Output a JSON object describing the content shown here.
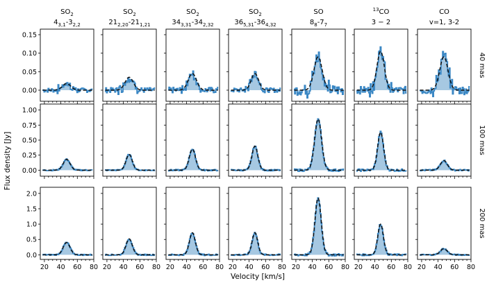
{
  "chart_data": {
    "type": "line",
    "xlabel": "Velocity [km/s]",
    "ylabel": "Flux density [Jy]",
    "xlim": [
      15,
      80
    ],
    "xticks": [
      20,
      40,
      60,
      80
    ],
    "columns": [
      {
        "title_main": "SO",
        "title_sup": "",
        "title_sub": "2",
        "title_line2": [
          [
            "4",
            ""
          ],
          [
            "3,1",
            "sub"
          ],
          [
            "-3",
            ""
          ],
          [
            "2,2",
            "sub"
          ]
        ]
      },
      {
        "title_main": "SO",
        "title_sup": "",
        "title_sub": "2",
        "title_line2": [
          [
            "21",
            ""
          ],
          [
            "2,20",
            "sub"
          ],
          [
            "-21",
            ""
          ],
          [
            "1,21",
            "sub"
          ]
        ]
      },
      {
        "title_main": "SO",
        "title_sup": "",
        "title_sub": "2",
        "title_line2": [
          [
            "34",
            ""
          ],
          [
            "3,31",
            "sub"
          ],
          [
            "-34",
            ""
          ],
          [
            "2,32",
            "sub"
          ]
        ]
      },
      {
        "title_main": "SO",
        "title_sup": "",
        "title_sub": "2",
        "title_line2": [
          [
            "36",
            ""
          ],
          [
            "5,31",
            "sub"
          ],
          [
            "-36",
            ""
          ],
          [
            "4,32",
            "sub"
          ]
        ]
      },
      {
        "title_main": "SO",
        "title_sup": "",
        "title_sub": "",
        "title_line2": [
          [
            "8",
            ""
          ],
          [
            "8",
            "sub"
          ],
          [
            "-7",
            ""
          ],
          [
            "7",
            "sub"
          ]
        ]
      },
      {
        "title_main": "CO",
        "title_sup": "13",
        "title_sub": "",
        "title_line2": [
          [
            "3 − 2",
            ""
          ]
        ]
      },
      {
        "title_main": "CO",
        "title_sup": "",
        "title_sub": "",
        "title_line2": [
          [
            "v=1, 3-2",
            ""
          ]
        ]
      }
    ],
    "rows": [
      {
        "label": "40 mas",
        "ylim": [
          -0.03,
          0.165
        ],
        "yticks": [
          "0.00",
          "0.05",
          "0.10",
          "0.15"
        ],
        "ytick_values": [
          0,
          0.05,
          0.1,
          0.15
        ],
        "peaks": [
          0.018,
          0.035,
          0.045,
          0.045,
          0.09,
          0.105,
          0.09
        ],
        "widths": [
          5,
          5,
          5,
          4.5,
          5,
          4.5,
          5
        ],
        "noise": [
          0.006,
          0.007,
          0.008,
          0.006,
          0.014,
          0.01,
          0.012
        ]
      },
      {
        "label": "100 mas",
        "ylim": [
          -0.1,
          1.1
        ],
        "yticks": [
          "0.00",
          "0.25",
          "0.50",
          "0.75",
          "1.00"
        ],
        "ytick_values": [
          0,
          0.25,
          0.5,
          0.75,
          1.0
        ],
        "peaks": [
          0.18,
          0.26,
          0.35,
          0.4,
          0.85,
          0.63,
          0.16
        ],
        "widths": [
          4.2,
          3.8,
          3.8,
          3.6,
          4.2,
          3.6,
          4.2
        ],
        "noise": [
          0.01,
          0.01,
          0.012,
          0.012,
          0.02,
          0.02,
          0.012
        ]
      },
      {
        "label": "200 mas",
        "ylim": [
          -0.15,
          2.2
        ],
        "yticks": [
          "0.0",
          "0.5",
          "1.0",
          "1.5",
          "2.0"
        ],
        "ytick_values": [
          0,
          0.5,
          1.0,
          1.5,
          2.0
        ],
        "peaks": [
          0.4,
          0.52,
          0.72,
          0.72,
          1.85,
          1.0,
          0.2
        ],
        "widths": [
          4.2,
          3.8,
          3.6,
          3.4,
          3.8,
          3.4,
          4.2
        ],
        "noise": [
          0.02,
          0.02,
          0.025,
          0.025,
          0.04,
          0.03,
          0.02
        ]
      }
    ],
    "peak_velocity": 47,
    "colors": {
      "observed": "#3a87c4",
      "fill": "#a6c8e2",
      "model": "#111111"
    }
  }
}
